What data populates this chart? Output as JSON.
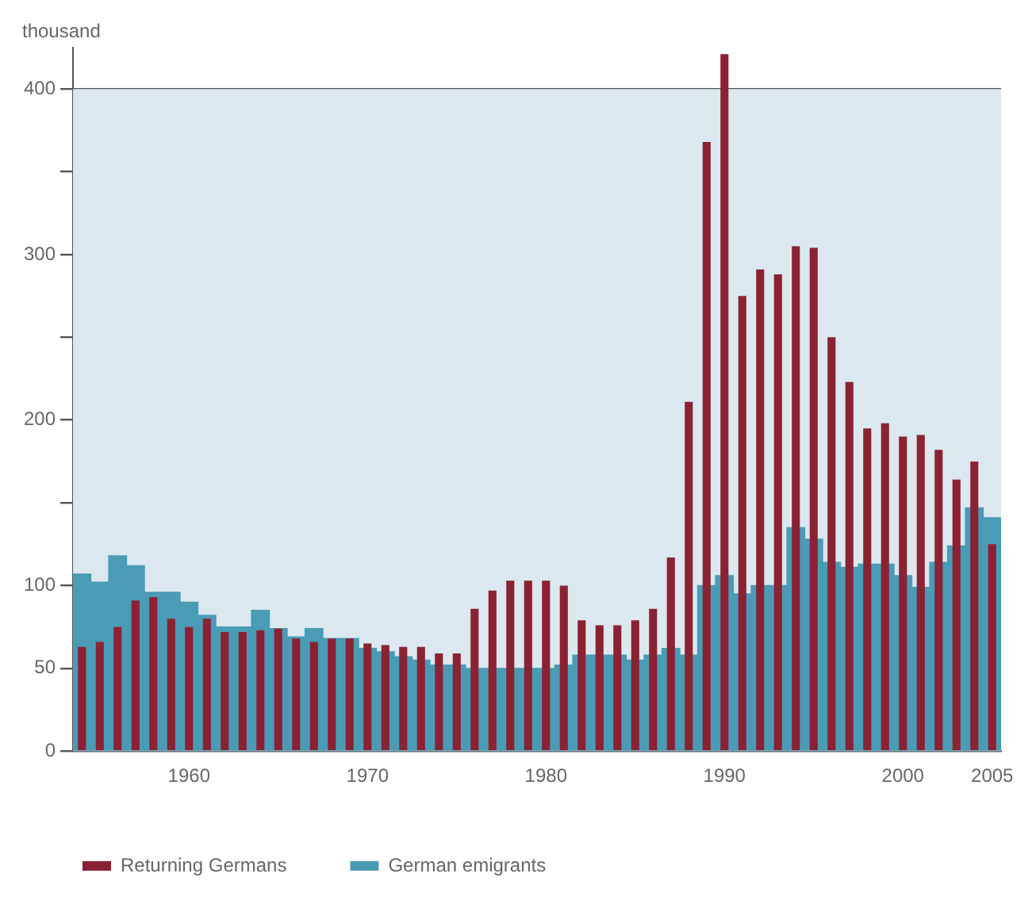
{
  "chart_data": {
    "type": "bar",
    "ylabel": "thousand",
    "x": [
      1954,
      1955,
      1956,
      1957,
      1958,
      1959,
      1960,
      1961,
      1962,
      1963,
      1964,
      1965,
      1966,
      1967,
      1968,
      1969,
      1970,
      1971,
      1972,
      1973,
      1974,
      1975,
      1976,
      1977,
      1978,
      1979,
      1980,
      1981,
      1982,
      1983,
      1984,
      1985,
      1986,
      1987,
      1988,
      1989,
      1990,
      1991,
      1992,
      1993,
      1994,
      1995,
      1996,
      1997,
      1998,
      1999,
      2000,
      2001,
      2002,
      2003,
      2004,
      2005
    ],
    "series": [
      {
        "name": "German emigrants",
        "color": "#4a9bb5",
        "values": [
          107,
          102,
          118,
          112,
          96,
          96,
          90,
          82,
          75,
          75,
          85,
          74,
          69,
          74,
          68,
          68,
          62,
          60,
          57,
          55,
          52,
          52,
          50,
          50,
          50,
          50,
          50,
          52,
          58,
          58,
          58,
          55,
          58,
          62,
          58,
          100,
          106,
          95,
          100,
          100,
          135,
          128,
          114,
          111,
          113,
          113,
          106,
          99,
          114,
          124,
          147,
          141
        ]
      },
      {
        "name": "Returning Germans",
        "color": "#8b2234",
        "values": [
          63,
          66,
          75,
          91,
          93,
          80,
          75,
          80,
          72,
          72,
          73,
          74,
          68,
          66,
          68,
          68,
          65,
          64,
          63,
          63,
          59,
          59,
          86,
          97,
          103,
          103,
          103,
          100,
          79,
          76,
          76,
          79,
          86,
          117,
          211,
          368,
          421,
          275,
          291,
          288,
          305,
          304,
          250,
          223,
          195,
          198,
          190,
          191,
          182,
          164,
          175,
          125
        ]
      }
    ],
    "xlim": [
      1953.5,
      2005.5
    ],
    "xticks": [
      1960,
      1970,
      1980,
      1990,
      2000,
      2005
    ],
    "ylim": [
      0,
      425
    ],
    "yticks": [
      0,
      50,
      100,
      {
        "value": 150,
        "label": null
      },
      200,
      {
        "value": 250,
        "label": null
      },
      300,
      {
        "value": 350,
        "label": null
      },
      400
    ],
    "grid": "y",
    "legend": "bottom left"
  }
}
